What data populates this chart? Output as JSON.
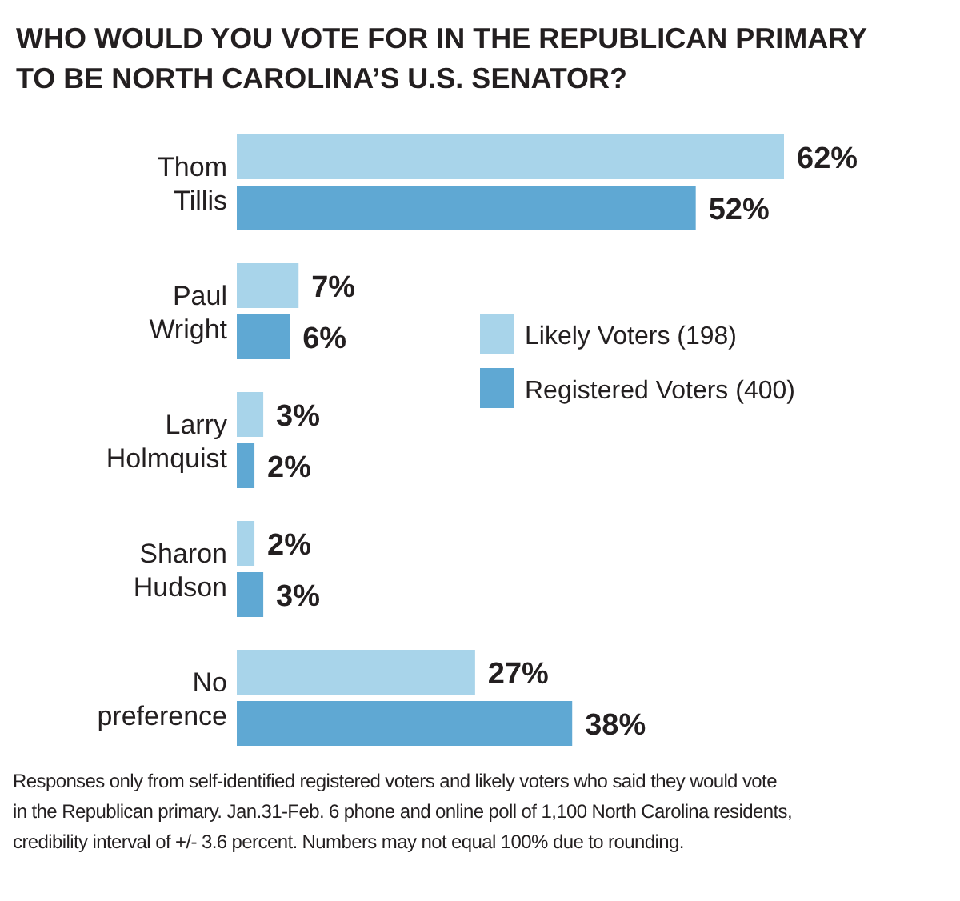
{
  "chart_data": {
    "type": "bar",
    "orientation": "horizontal",
    "title": "WHO WOULD YOU VOTE FOR IN THE REPUBLICAN PRIMARY TO BE NORTH CAROLINA’S U.S. SENATOR?",
    "categories": [
      "Thom Tillis",
      "Paul Wright",
      "Larry Holmquist",
      "Sharon Hudson",
      "No preference"
    ],
    "xlim": [
      0,
      62
    ],
    "legend": "right",
    "series": [
      {
        "name": "Likely Voters (198)",
        "color": "#a8d4ea",
        "values": [
          62,
          7,
          3,
          2,
          27
        ],
        "value_labels": [
          "62%",
          "7%",
          "3%",
          "2%",
          "27%"
        ]
      },
      {
        "name": "Registered Voters (400)",
        "color": "#5fa8d3",
        "values": [
          52,
          6,
          2,
          3,
          38
        ],
        "value_labels": [
          "52%",
          "6%",
          "2%",
          "3%",
          "38%"
        ]
      }
    ],
    "annotations": [
      "Responses only from self-identified registered voters and likely voters who said they would vote in the Republican primary. Jan.31-Feb. 6 phone and online poll of 1,100 North Carolina residents, credibility interval of +/- 3.6 percent. Numbers may not equal 100% due to rounding."
    ]
  }
}
